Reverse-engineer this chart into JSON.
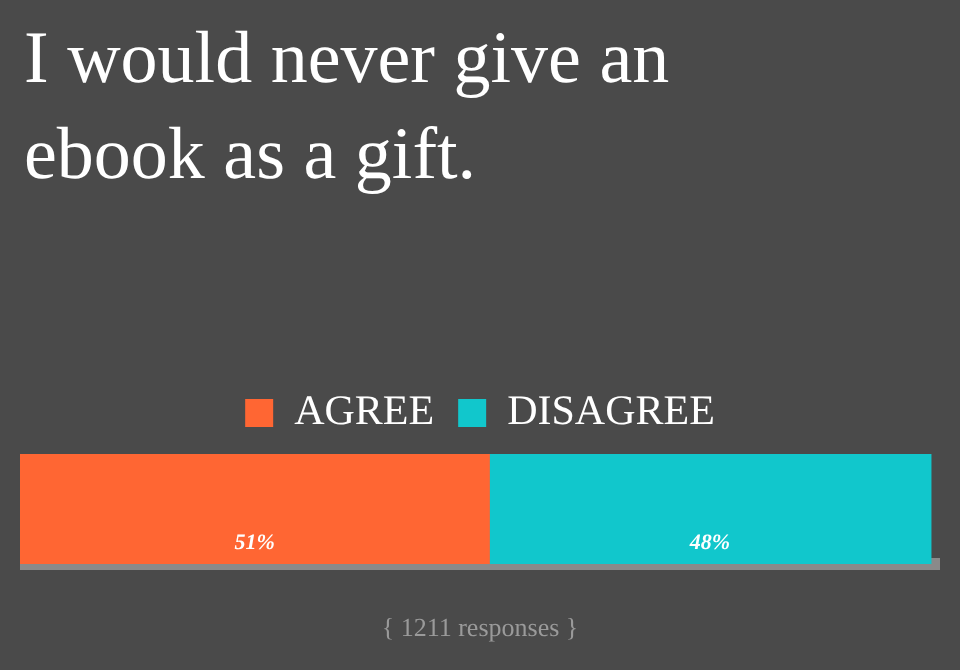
{
  "chart_data": {
    "type": "bar",
    "orientation": "horizontal",
    "stacked": true,
    "title": "I would never give an ebook as a gift.",
    "annotations": [
      "{ 1211 responses }"
    ],
    "categories": [
      null
    ],
    "xlim": [
      0,
      100
    ],
    "tick_labels": false,
    "legend": "top",
    "series": [
      {
        "name": "AGREE",
        "color": "#ff6633",
        "values": [
          51
        ],
        "value_labels": [
          "51%"
        ]
      },
      {
        "name": "DISAGREE",
        "color": "#11c7cc",
        "values": [
          48
        ],
        "value_labels": [
          "48%"
        ]
      }
    ]
  }
}
